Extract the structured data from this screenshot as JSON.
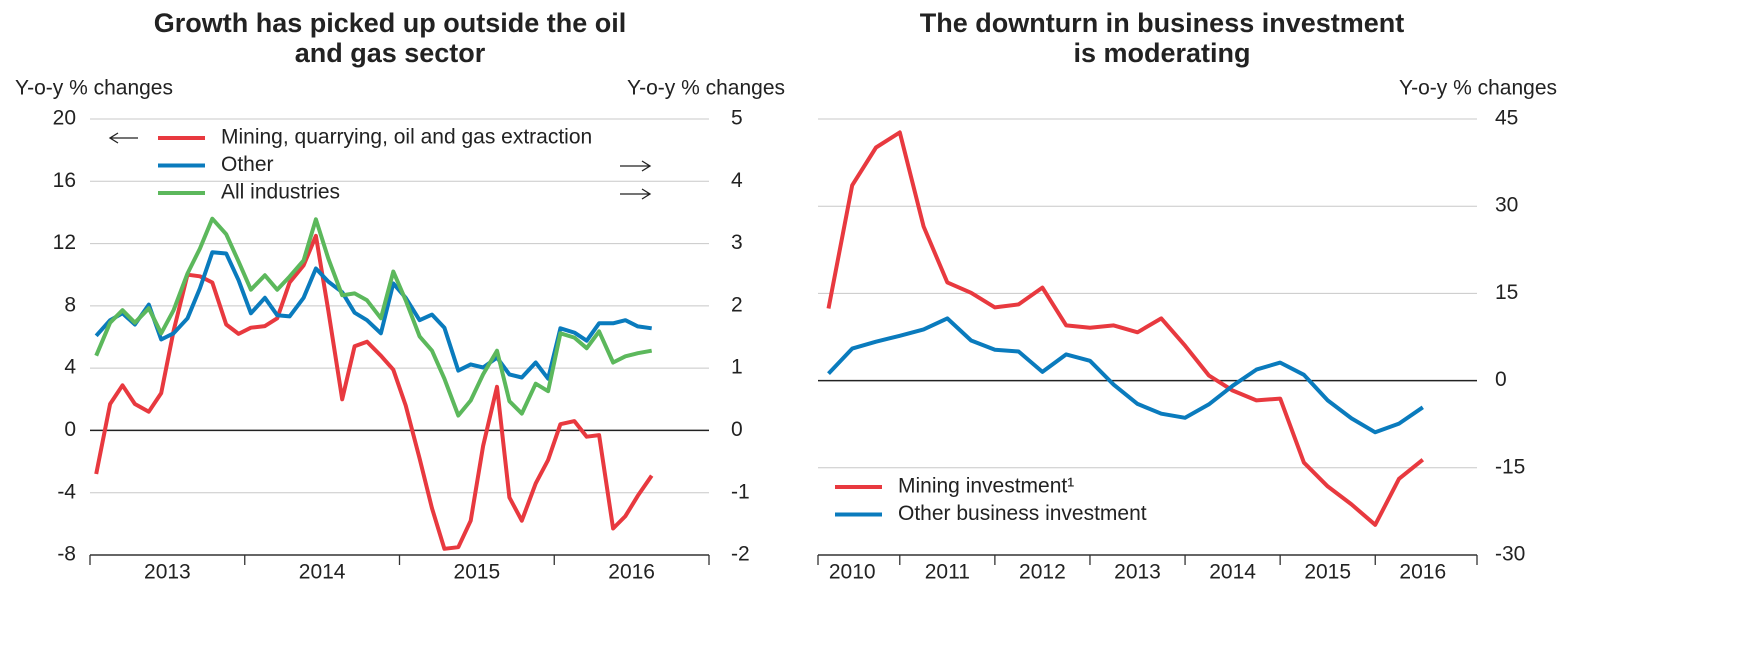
{
  "chart_data": [
    {
      "type": "line",
      "title": "Growth has picked up outside the oil\nand gas sector",
      "ylabel": "Y-o-y % changes",
      "y2label": "Y-o-y % changes",
      "xlim": [
        2013,
        2017
      ],
      "xticks": [
        {
          "value": 2013,
          "label": "2013"
        },
        {
          "value": 2014,
          "label": "2014"
        },
        {
          "value": 2015,
          "label": "2015"
        },
        {
          "value": 2016,
          "label": "2016"
        }
      ],
      "ylim": [
        -8,
        20
      ],
      "yticks": [
        -8,
        -4,
        0,
        4,
        8,
        12,
        16,
        20
      ],
      "y2lim": [
        -2,
        5
      ],
      "y2ticks": [
        -2,
        -1,
        0,
        1,
        2,
        3,
        4,
        5
      ],
      "grid": true,
      "legend": "upper left",
      "x": [
        2013.04,
        2013.13,
        2013.21,
        2013.29,
        2013.38,
        2013.46,
        2013.54,
        2013.63,
        2013.71,
        2013.79,
        2013.88,
        2013.96,
        2014.04,
        2014.13,
        2014.21,
        2014.29,
        2014.38,
        2014.46,
        2014.54,
        2014.63,
        2014.71,
        2014.79,
        2014.88,
        2014.96,
        2015.04,
        2015.13,
        2015.21,
        2015.29,
        2015.38,
        2015.46,
        2015.54,
        2015.63,
        2015.71,
        2015.79,
        2015.88,
        2015.96,
        2016.04,
        2016.13,
        2016.21,
        2016.29,
        2016.38,
        2016.46,
        2016.54,
        2016.63
      ],
      "series": [
        {
          "name": "Mining, quarrying, oil and gas extraction",
          "color": "#e8393f",
          "axis": "y",
          "values": [
            -2.8,
            1.7,
            2.9,
            1.7,
            1.2,
            2.4,
            6.4,
            10.0,
            9.9,
            9.5,
            6.8,
            6.2,
            6.6,
            6.7,
            7.2,
            9.5,
            10.6,
            12.5,
            7.7,
            2.0,
            5.4,
            5.7,
            4.8,
            3.9,
            1.6,
            -1.8,
            -5.0,
            -7.6,
            -7.5,
            -5.8,
            -1.0,
            2.8,
            -4.3,
            -5.8,
            -3.4,
            -1.9,
            0.4,
            0.6,
            -0.4,
            -0.3,
            -6.3,
            -5.5,
            -4.2,
            -2.9
          ]
        },
        {
          "name": "Other",
          "color": "#0a7bbd",
          "axis": "y2",
          "values": [
            1.52,
            1.77,
            1.88,
            1.7,
            2.02,
            1.46,
            1.56,
            1.8,
            2.28,
            2.86,
            2.84,
            2.41,
            1.88,
            2.13,
            1.85,
            1.83,
            2.13,
            2.6,
            2.39,
            2.22,
            1.89,
            1.77,
            1.56,
            2.36,
            2.13,
            1.77,
            1.86,
            1.65,
            0.96,
            1.06,
            1.01,
            1.17,
            0.9,
            0.85,
            1.09,
            0.83,
            1.64,
            1.57,
            1.44,
            1.72,
            1.72,
            1.77,
            1.67,
            1.64
          ]
        },
        {
          "name": "All industries",
          "color": "#5cb85c",
          "axis": "y2",
          "values": [
            1.2,
            1.73,
            1.93,
            1.73,
            1.96,
            1.56,
            1.93,
            2.52,
            2.92,
            3.4,
            3.15,
            2.71,
            2.26,
            2.49,
            2.26,
            2.47,
            2.73,
            3.39,
            2.76,
            2.17,
            2.2,
            2.09,
            1.8,
            2.55,
            2.09,
            1.51,
            1.28,
            0.83,
            0.24,
            0.48,
            0.9,
            1.28,
            0.47,
            0.27,
            0.75,
            0.63,
            1.56,
            1.49,
            1.32,
            1.59,
            1.09,
            1.19,
            1.24,
            1.28
          ]
        }
      ]
    },
    {
      "type": "line",
      "title": "The downturn in business investment\nis moderating",
      "ylabel": "Y-o-y % changes",
      "yaxis_side": "right",
      "xlim": [
        2010.14,
        2017.07
      ],
      "xticks": [
        {
          "value": 2010,
          "label": "2010"
        },
        {
          "value": 2011,
          "label": "2011"
        },
        {
          "value": 2012,
          "label": "2012"
        },
        {
          "value": 2013,
          "label": "2013"
        },
        {
          "value": 2014,
          "label": "2014"
        },
        {
          "value": 2015,
          "label": "2015"
        },
        {
          "value": 2016,
          "label": "2016"
        }
      ],
      "ylim": [
        -30,
        45
      ],
      "yticks": [
        -30,
        -15,
        0,
        15,
        30,
        45
      ],
      "grid": true,
      "legend": "lower left",
      "x": [
        2010.25,
        2010.5,
        2010.75,
        2011.0,
        2011.25,
        2011.5,
        2011.75,
        2012.0,
        2012.25,
        2012.5,
        2012.75,
        2013.0,
        2013.25,
        2013.5,
        2013.75,
        2014.0,
        2014.25,
        2014.5,
        2014.75,
        2015.0,
        2015.25,
        2015.5,
        2015.75,
        2016.0,
        2016.25,
        2016.5
      ],
      "series": [
        {
          "name": "Mining investment¹",
          "color": "#e8393f",
          "axis": "y",
          "values": [
            12.4,
            33.6,
            40.1,
            42.7,
            26.5,
            16.9,
            15.1,
            12.6,
            13.1,
            16.0,
            9.5,
            9.1,
            9.5,
            8.3,
            10.7,
            6.0,
            0.9,
            -1.7,
            -3.4,
            -3.1,
            -14.1,
            -18.2,
            -21.3,
            -24.8,
            -16.9,
            -13.6
          ]
        },
        {
          "name": "Other business investment",
          "color": "#0a7bbd",
          "axis": "y",
          "values": [
            1.2,
            5.5,
            6.7,
            7.7,
            8.8,
            10.7,
            6.9,
            5.3,
            5.0,
            1.5,
            4.5,
            3.4,
            -0.7,
            -4.0,
            -5.7,
            -6.4,
            -4.1,
            -0.9,
            1.9,
            3.1,
            1.0,
            -3.4,
            -6.5,
            -8.9,
            -7.4,
            -4.6
          ]
        }
      ]
    }
  ]
}
